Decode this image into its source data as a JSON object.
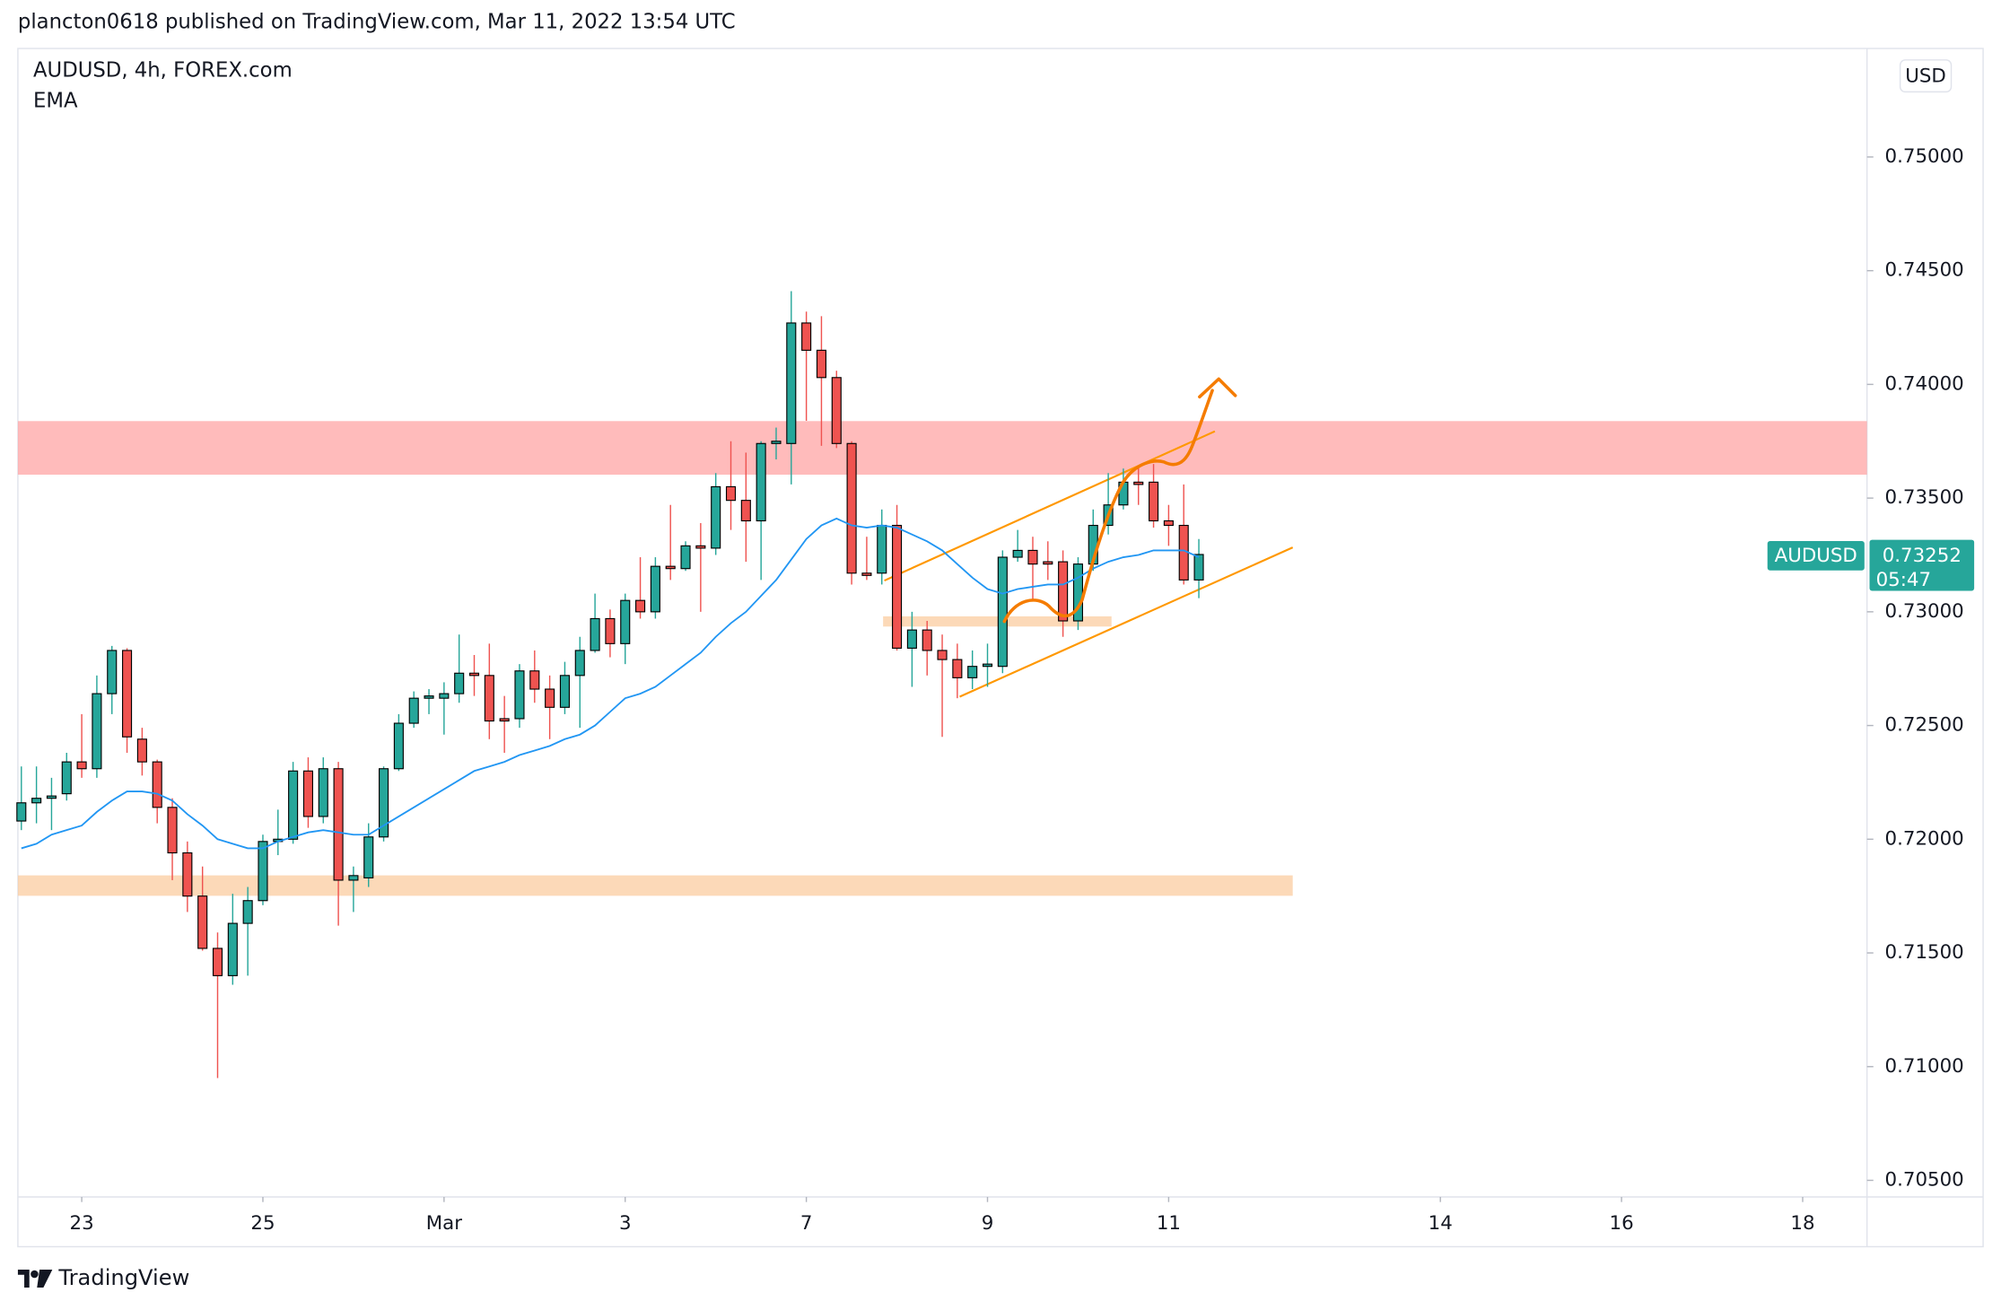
{
  "header": "plancton0618 published on TradingView.com, Mar 11, 2022 13:54 UTC",
  "footer_logo": "TradingView",
  "chart_data": {
    "type": "candlestick",
    "title": "AUDUSD, 4h, FOREX.com",
    "currency": "USD",
    "symbol_label": "AUDUSD",
    "last_price": 0.73252,
    "countdown": "05:47",
    "up_color": "#26a69a",
    "down_color": "#ef5350",
    "x": [
      -4,
      -3,
      -2,
      -1,
      0,
      1,
      2,
      3,
      4,
      5,
      6,
      7,
      8,
      9,
      10,
      11,
      12,
      13,
      14,
      15,
      16,
      17,
      18,
      19,
      20,
      21,
      22,
      23,
      24,
      25,
      26,
      27,
      28,
      29,
      30,
      31,
      32,
      33,
      34,
      35,
      36,
      37,
      38,
      39,
      40,
      41,
      42,
      43,
      44,
      45,
      46,
      47,
      48,
      49,
      50,
      51,
      52,
      53,
      54,
      55,
      56,
      57,
      58,
      59,
      60,
      61,
      62,
      63,
      64,
      65,
      66,
      67,
      68,
      69,
      70,
      71,
      72,
      73,
      74
    ],
    "open": [
      0.7208,
      0.7216,
      0.7218,
      0.722,
      0.7234,
      0.7231,
      0.7264,
      0.7283,
      0.7244,
      0.7234,
      0.7214,
      0.7194,
      0.7175,
      0.7152,
      0.714,
      0.7163,
      0.7173,
      0.7199,
      0.72,
      0.723,
      0.721,
      0.7231,
      0.7182,
      0.7183,
      0.7201,
      0.7231,
      0.7251,
      0.7262,
      0.7262,
      0.7264,
      0.7273,
      0.7272,
      0.7253,
      0.7253,
      0.7274,
      0.7266,
      0.7258,
      0.7272,
      0.7283,
      0.7297,
      0.7286,
      0.7305,
      0.73,
      0.732,
      0.7319,
      0.7329,
      0.7328,
      0.7355,
      0.7349,
      0.734,
      0.7374,
      0.7374,
      0.7427,
      0.7415,
      0.7403,
      0.7374,
      0.7317,
      0.7317,
      0.7338,
      0.7284,
      0.7292,
      0.7283,
      0.7279,
      0.7271,
      0.7276,
      0.7276,
      0.7324,
      0.7327,
      0.7322,
      0.7322,
      0.7296,
      0.7321,
      0.7338,
      0.7347,
      0.7357,
      0.7357,
      0.734,
      0.7338,
      0.7314
    ],
    "high": [
      0.7232,
      0.7232,
      0.7227,
      0.7238,
      0.7255,
      0.7272,
      0.7285,
      0.7284,
      0.7249,
      0.7235,
      0.7218,
      0.7199,
      0.7188,
      0.7159,
      0.7176,
      0.7179,
      0.7202,
      0.7213,
      0.7234,
      0.7236,
      0.7236,
      0.7234,
      0.7188,
      0.7207,
      0.7232,
      0.7255,
      0.7265,
      0.7266,
      0.7269,
      0.729,
      0.7281,
      0.7286,
      0.7263,
      0.7277,
      0.7283,
      0.7272,
      0.7278,
      0.7289,
      0.7308,
      0.7301,
      0.7308,
      0.7324,
      0.7324,
      0.7347,
      0.7331,
      0.7339,
      0.7361,
      0.7375,
      0.737,
      0.7375,
      0.7381,
      0.7441,
      0.7432,
      0.743,
      0.7406,
      0.7375,
      0.7333,
      0.7345,
      0.7347,
      0.73,
      0.7296,
      0.729,
      0.7286,
      0.7283,
      0.7286,
      0.7327,
      0.7336,
      0.7333,
      0.7331,
      0.7327,
      0.7324,
      0.7345,
      0.7361,
      0.7363,
      0.7364,
      0.7365,
      0.7347,
      0.7356,
      0.7332
    ],
    "low": [
      0.7204,
      0.7207,
      0.7204,
      0.7217,
      0.7227,
      0.7227,
      0.7255,
      0.7238,
      0.7228,
      0.7207,
      0.7182,
      0.7168,
      0.7151,
      0.7095,
      0.7136,
      0.714,
      0.7171,
      0.7193,
      0.7198,
      0.7205,
      0.7207,
      0.7162,
      0.7168,
      0.7179,
      0.7199,
      0.723,
      0.7249,
      0.7255,
      0.7246,
      0.726,
      0.7263,
      0.7244,
      0.7238,
      0.7249,
      0.726,
      0.7244,
      0.7255,
      0.7249,
      0.7282,
      0.728,
      0.7277,
      0.7297,
      0.7297,
      0.7314,
      0.7318,
      0.73,
      0.7325,
      0.7336,
      0.7322,
      0.7314,
      0.7367,
      0.7356,
      0.7384,
      0.7373,
      0.7372,
      0.7312,
      0.7314,
      0.7312,
      0.7283,
      0.7267,
      0.7272,
      0.7245,
      0.7262,
      0.7266,
      0.7267,
      0.7273,
      0.7322,
      0.7305,
      0.7314,
      0.7289,
      0.7292,
      0.7318,
      0.7334,
      0.7345,
      0.7347,
      0.7337,
      0.7329,
      0.7312,
      0.7306
    ],
    "close": [
      0.7216,
      0.7218,
      0.7219,
      0.7234,
      0.7231,
      0.7264,
      0.7283,
      0.7245,
      0.7234,
      0.7214,
      0.7194,
      0.7175,
      0.7152,
      0.714,
      0.7163,
      0.7173,
      0.7199,
      0.72,
      0.723,
      0.721,
      0.7231,
      0.7182,
      0.7184,
      0.7201,
      0.7231,
      0.7251,
      0.7262,
      0.7263,
      0.7264,
      0.7273,
      0.7272,
      0.7252,
      0.7252,
      0.7274,
      0.7266,
      0.7258,
      0.7272,
      0.7283,
      0.7297,
      0.7286,
      0.7305,
      0.73,
      0.732,
      0.7319,
      0.7329,
      0.7328,
      0.7355,
      0.7349,
      0.734,
      0.7374,
      0.7375,
      0.7427,
      0.7415,
      0.7403,
      0.7374,
      0.7317,
      0.7316,
      0.7338,
      0.7284,
      0.7292,
      0.7283,
      0.7279,
      0.7271,
      0.7276,
      0.7277,
      0.7324,
      0.7327,
      0.7321,
      0.7321,
      0.7296,
      0.7321,
      0.7338,
      0.7347,
      0.7357,
      0.7356,
      0.734,
      0.7338,
      0.7314,
      0.73252
    ],
    "ema": {
      "name": "EMA",
      "color": "#2196f3",
      "values": [
        0.7196,
        0.7198,
        0.7202,
        0.7204,
        0.7206,
        0.7212,
        0.7217,
        0.7221,
        0.7221,
        0.722,
        0.7217,
        0.7211,
        0.7206,
        0.72,
        0.7198,
        0.7196,
        0.7196,
        0.7199,
        0.7201,
        0.7203,
        0.7204,
        0.7203,
        0.7202,
        0.7202,
        0.7206,
        0.721,
        0.7214,
        0.7218,
        0.7222,
        0.7226,
        0.723,
        0.7232,
        0.7234,
        0.7237,
        0.7239,
        0.7241,
        0.7244,
        0.7246,
        0.725,
        0.7256,
        0.7262,
        0.7264,
        0.7267,
        0.7272,
        0.7277,
        0.7282,
        0.7289,
        0.7295,
        0.73,
        0.7307,
        0.7314,
        0.7323,
        0.7332,
        0.7338,
        0.7341,
        0.7338,
        0.7337,
        0.7338,
        0.7337,
        0.7334,
        0.7331,
        0.7327,
        0.7321,
        0.7315,
        0.731,
        0.7308,
        0.731,
        0.7311,
        0.7312,
        0.7312,
        0.7315,
        0.7319,
        0.7322,
        0.7324,
        0.7325,
        0.7327,
        0.7327,
        0.7327,
        0.7324
      ]
    },
    "xlim": [
      -4.23,
      118.26
    ],
    "ylim": [
      0.70427,
      0.75477
    ],
    "xticks": [
      {
        "value": 0,
        "label": "23"
      },
      {
        "value": 12,
        "label": "25"
      },
      {
        "value": 24,
        "label": "Mar"
      },
      {
        "value": 36,
        "label": "3"
      },
      {
        "value": 48,
        "label": "7"
      },
      {
        "value": 60,
        "label": "9"
      },
      {
        "value": 72,
        "label": "11"
      },
      {
        "value": 90,
        "label": "14"
      },
      {
        "value": 102,
        "label": "16"
      },
      {
        "value": 114,
        "label": "18"
      }
    ],
    "yticks": [
      {
        "value": 0.705,
        "label": "0.70500"
      },
      {
        "value": 0.71,
        "label": "0.71000"
      },
      {
        "value": 0.715,
        "label": "0.71500"
      },
      {
        "value": 0.72,
        "label": "0.72000"
      },
      {
        "value": 0.725,
        "label": "0.72500"
      },
      {
        "value": 0.73,
        "label": "0.73000"
      },
      {
        "value": 0.735,
        "label": "0.73500"
      },
      {
        "value": 0.74,
        "label": "0.74000"
      },
      {
        "value": 0.745,
        "label": "0.74500"
      },
      {
        "value": 0.75,
        "label": "0.75000"
      }
    ]
  }
}
